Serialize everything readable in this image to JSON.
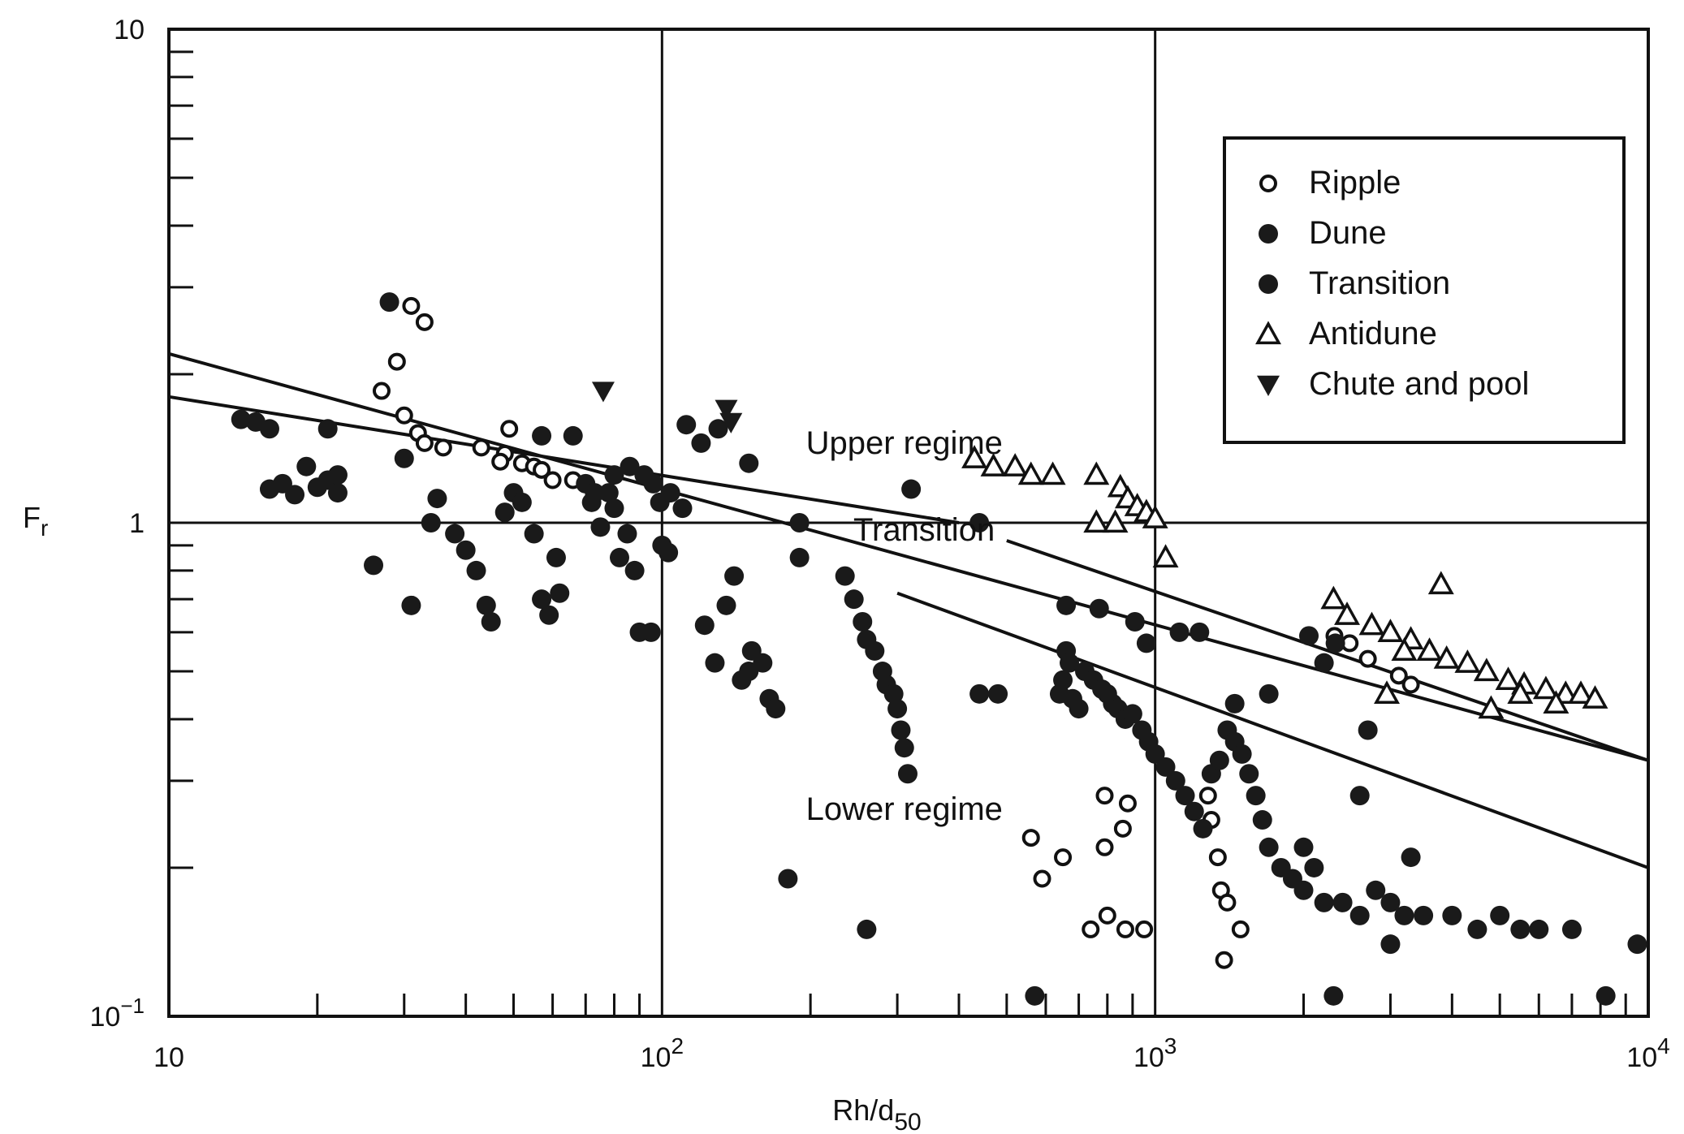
{
  "chart_data": {
    "type": "scatter",
    "xscale": "log",
    "yscale": "log",
    "xlim": [
      10,
      10000
    ],
    "ylim": [
      0.1,
      10
    ],
    "xlabel": "Rh/d",
    "xlabel_sub": "50",
    "ylabel": "F",
    "ylabel_sub": "r",
    "xticks": [
      {
        "base": "10",
        "exp": ""
      },
      {
        "base": "10",
        "exp": "2"
      },
      {
        "base": "10",
        "exp": "3"
      },
      {
        "base": "10",
        "exp": "4"
      }
    ],
    "yticks": [
      {
        "value": 0.1,
        "base": "10",
        "exp": "−1"
      },
      {
        "value": 1,
        "base": "1",
        "exp": ""
      },
      {
        "value": 10,
        "base": "10",
        "exp": ""
      }
    ],
    "grid": "major",
    "legend_position": "top-right",
    "annotations": [
      {
        "text": "Upper regime",
        "x": 310,
        "y": 1.38
      },
      {
        "text": "Transition",
        "x": 340,
        "y": 0.92
      },
      {
        "text": "Lower regime",
        "x": 310,
        "y": 0.25
      }
    ],
    "boundary_lines": [
      {
        "x": [
          10,
          10000
        ],
        "y": [
          2.2,
          0.33
        ]
      },
      {
        "x": [
          10,
          400
        ],
        "y": [
          1.8,
          1.0
        ]
      },
      {
        "x": [
          500,
          10000
        ],
        "y": [
          0.92,
          0.33
        ]
      },
      {
        "x": [
          300,
          10000
        ],
        "y": [
          0.72,
          0.2
        ]
      }
    ],
    "series": [
      {
        "name": "Ripple",
        "marker": "open-circle",
        "points": [
          [
            31,
            2.75
          ],
          [
            33,
            2.55
          ],
          [
            29,
            2.12
          ],
          [
            27,
            1.85
          ],
          [
            30,
            1.65
          ],
          [
            32,
            1.52
          ],
          [
            33,
            1.45
          ],
          [
            36,
            1.42
          ],
          [
            43,
            1.42
          ],
          [
            48,
            1.38
          ],
          [
            52,
            1.32
          ],
          [
            55,
            1.3
          ],
          [
            60,
            1.22
          ],
          [
            47,
            1.33
          ],
          [
            57,
            1.28
          ],
          [
            66,
            1.22
          ],
          [
            49,
            1.55
          ],
          [
            1280,
            0.28
          ],
          [
            1300,
            0.25
          ],
          [
            1340,
            0.21
          ],
          [
            1360,
            0.18
          ],
          [
            1400,
            0.17
          ],
          [
            1380,
            0.13
          ],
          [
            1490,
            0.15
          ],
          [
            560,
            0.23
          ],
          [
            590,
            0.19
          ],
          [
            650,
            0.21
          ],
          [
            740,
            0.15
          ],
          [
            800,
            0.16
          ],
          [
            870,
            0.15
          ],
          [
            950,
            0.15
          ],
          [
            790,
            0.22
          ],
          [
            860,
            0.24
          ],
          [
            880,
            0.27
          ],
          [
            790,
            0.28
          ],
          [
            2310,
            0.59
          ],
          [
            2480,
            0.57
          ],
          [
            2700,
            0.53
          ],
          [
            3120,
            0.49
          ],
          [
            3300,
            0.47
          ]
        ]
      },
      {
        "name": "Dune",
        "marker": "filled-circle",
        "points": [
          [
            15,
            1.6
          ],
          [
            16,
            1.55
          ],
          [
            16,
            1.17
          ],
          [
            17,
            1.2
          ],
          [
            18,
            1.14
          ],
          [
            19,
            1.3
          ],
          [
            20,
            1.18
          ],
          [
            21,
            1.22
          ],
          [
            22,
            1.15
          ],
          [
            22,
            1.25
          ],
          [
            21,
            1.55
          ],
          [
            14,
            1.62
          ],
          [
            26,
            0.82
          ],
          [
            28,
            2.8
          ],
          [
            30,
            1.35
          ],
          [
            31,
            0.68
          ],
          [
            34,
            1.0
          ],
          [
            35,
            1.12
          ],
          [
            38,
            0.95
          ],
          [
            40,
            0.88
          ],
          [
            42,
            0.8
          ],
          [
            44,
            0.68
          ],
          [
            45,
            0.63
          ],
          [
            48,
            1.05
          ],
          [
            50,
            1.15
          ],
          [
            52,
            1.1
          ],
          [
            55,
            0.95
          ],
          [
            57,
            0.7
          ],
          [
            59,
            0.65
          ],
          [
            61,
            0.85
          ],
          [
            62,
            0.72
          ],
          [
            70,
            1.2
          ],
          [
            72,
            1.1
          ],
          [
            75,
            0.98
          ],
          [
            78,
            1.15
          ],
          [
            80,
            1.07
          ],
          [
            82,
            0.85
          ],
          [
            85,
            0.95
          ],
          [
            88,
            0.8
          ],
          [
            90,
            0.6
          ],
          [
            95,
            0.6
          ],
          [
            100,
            0.9
          ],
          [
            103,
            0.87
          ],
          [
            110,
            1.07
          ],
          [
            122,
            0.62
          ],
          [
            128,
            0.52
          ],
          [
            135,
            0.68
          ],
          [
            140,
            0.78
          ],
          [
            145,
            0.48
          ],
          [
            150,
            0.5
          ],
          [
            152,
            0.55
          ],
          [
            160,
            0.52
          ],
          [
            165,
            0.44
          ],
          [
            170,
            0.42
          ],
          [
            180,
            0.19
          ],
          [
            190,
            0.85
          ],
          [
            235,
            0.78
          ],
          [
            245,
            0.7
          ],
          [
            255,
            0.63
          ],
          [
            260,
            0.58
          ],
          [
            270,
            0.55
          ],
          [
            280,
            0.5
          ],
          [
            285,
            0.47
          ],
          [
            295,
            0.45
          ],
          [
            300,
            0.42
          ],
          [
            305,
            0.38
          ],
          [
            310,
            0.35
          ],
          [
            315,
            0.31
          ],
          [
            260,
            0.15
          ],
          [
            320,
            1.17
          ],
          [
            570,
            0.11
          ],
          [
            640,
            0.45
          ],
          [
            650,
            0.48
          ],
          [
            660,
            0.55
          ],
          [
            670,
            0.52
          ],
          [
            680,
            0.44
          ],
          [
            700,
            0.42
          ],
          [
            720,
            0.5
          ],
          [
            750,
            0.48
          ],
          [
            780,
            0.46
          ],
          [
            800,
            0.45
          ],
          [
            820,
            0.43
          ],
          [
            840,
            0.42
          ],
          [
            870,
            0.4
          ],
          [
            900,
            0.41
          ],
          [
            940,
            0.38
          ],
          [
            970,
            0.36
          ],
          [
            1000,
            0.34
          ],
          [
            1050,
            0.32
          ],
          [
            1100,
            0.3
          ],
          [
            1150,
            0.28
          ],
          [
            1200,
            0.26
          ],
          [
            1250,
            0.24
          ],
          [
            1300,
            0.31
          ],
          [
            1350,
            0.33
          ],
          [
            1400,
            0.38
          ],
          [
            1450,
            0.36
          ],
          [
            1500,
            0.34
          ],
          [
            1550,
            0.31
          ],
          [
            1600,
            0.28
          ],
          [
            1650,
            0.25
          ],
          [
            1700,
            0.22
          ],
          [
            1800,
            0.2
          ],
          [
            1900,
            0.19
          ],
          [
            2000,
            0.18
          ],
          [
            2100,
            0.2
          ],
          [
            2200,
            0.17
          ],
          [
            2400,
            0.17
          ],
          [
            2600,
            0.16
          ],
          [
            2800,
            0.18
          ],
          [
            3000,
            0.17
          ],
          [
            3200,
            0.16
          ],
          [
            3500,
            0.16
          ],
          [
            4000,
            0.16
          ],
          [
            4500,
            0.15
          ],
          [
            5000,
            0.16
          ],
          [
            5500,
            0.15
          ],
          [
            6000,
            0.15
          ],
          [
            7000,
            0.15
          ],
          [
            9500,
            0.14
          ],
          [
            2300,
            0.11
          ],
          [
            2600,
            0.28
          ],
          [
            2700,
            0.38
          ],
          [
            3300,
            0.21
          ],
          [
            3000,
            0.14
          ],
          [
            8200,
            0.11
          ],
          [
            1450,
            0.43
          ],
          [
            1700,
            0.45
          ],
          [
            2000,
            0.22
          ],
          [
            440,
            0.45
          ],
          [
            480,
            0.45
          ],
          [
            960,
            0.57
          ]
        ]
      },
      {
        "name": "Transition",
        "marker": "filled-circle",
        "points": [
          [
            57,
            1.5
          ],
          [
            66,
            1.5
          ],
          [
            73,
            1.15
          ],
          [
            80,
            1.25
          ],
          [
            86,
            1.3
          ],
          [
            92,
            1.25
          ],
          [
            96,
            1.2
          ],
          [
            99,
            1.1
          ],
          [
            104,
            1.15
          ],
          [
            112,
            1.58
          ],
          [
            120,
            1.45
          ],
          [
            130,
            1.55
          ],
          [
            150,
            1.32
          ],
          [
            190,
            1.0
          ],
          [
            440,
            1.0
          ],
          [
            660,
            0.68
          ],
          [
            770,
            0.67
          ],
          [
            910,
            0.63
          ],
          [
            1120,
            0.6
          ],
          [
            1230,
            0.6
          ],
          [
            2050,
            0.59
          ],
          [
            2200,
            0.52
          ],
          [
            2320,
            0.57
          ]
        ]
      },
      {
        "name": "Antidune",
        "marker": "open-triangle-up",
        "points": [
          [
            430,
            1.35
          ],
          [
            470,
            1.3
          ],
          [
            520,
            1.3
          ],
          [
            560,
            1.25
          ],
          [
            620,
            1.25
          ],
          [
            760,
            1.25
          ],
          [
            850,
            1.18
          ],
          [
            880,
            1.12
          ],
          [
            920,
            1.08
          ],
          [
            960,
            1.05
          ],
          [
            1000,
            1.02
          ],
          [
            1050,
            0.85
          ],
          [
            2300,
            0.7
          ],
          [
            2450,
            0.65
          ],
          [
            2750,
            0.62
          ],
          [
            3000,
            0.6
          ],
          [
            3300,
            0.58
          ],
          [
            3600,
            0.55
          ],
          [
            3900,
            0.53
          ],
          [
            4300,
            0.52
          ],
          [
            4700,
            0.5
          ],
          [
            5200,
            0.48
          ],
          [
            5600,
            0.47
          ],
          [
            6200,
            0.46
          ],
          [
            6800,
            0.45
          ],
          [
            7300,
            0.45
          ],
          [
            7800,
            0.44
          ],
          [
            3800,
            0.75
          ],
          [
            5500,
            0.45
          ],
          [
            6500,
            0.43
          ],
          [
            3200,
            0.55
          ],
          [
            2950,
            0.45
          ],
          [
            4800,
            0.42
          ],
          [
            760,
            1.0
          ],
          [
            830,
            1.0
          ]
        ]
      },
      {
        "name": "Chute and pool",
        "marker": "filled-triangle-down",
        "points": [
          [
            76,
            1.85
          ],
          [
            135,
            1.7
          ],
          [
            138,
            1.6
          ]
        ]
      }
    ]
  }
}
